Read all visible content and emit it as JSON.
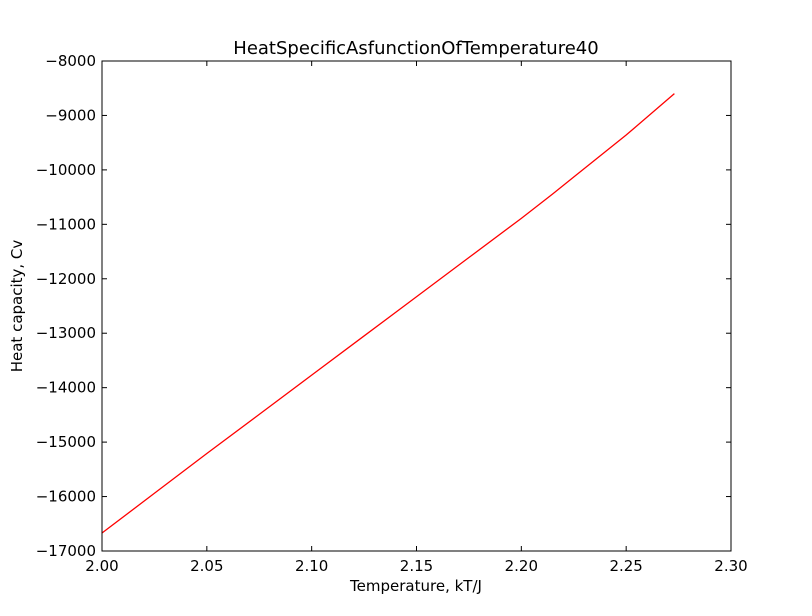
{
  "chart_data": {
    "type": "line",
    "title": "HeatSpecificAsfunctionOfTemperature40",
    "xlabel": "Temperature, kT/J",
    "ylabel": "Heat capacity, Cv",
    "xlim": [
      2.0,
      2.3
    ],
    "ylim": [
      -17000,
      -8000
    ],
    "xticks": [
      2.0,
      2.05,
      2.1,
      2.15,
      2.2,
      2.25,
      2.3
    ],
    "xtick_labels": [
      "2.00",
      "2.05",
      "2.10",
      "2.15",
      "2.20",
      "2.25",
      "2.30"
    ],
    "yticks": [
      -8000,
      -9000,
      -10000,
      -11000,
      -12000,
      -13000,
      -14000,
      -15000,
      -16000,
      -17000
    ],
    "ytick_labels": [
      "−8000",
      "−9000",
      "−10000",
      "−11000",
      "−12000",
      "−13000",
      "−14000",
      "−15000",
      "−16000",
      "−17000"
    ],
    "grid": false,
    "series": [
      {
        "color": "#ff0000",
        "x": [
          2.0,
          2.025,
          2.05,
          2.075,
          2.1,
          2.125,
          2.15,
          2.175,
          2.2,
          2.215,
          2.225,
          2.25,
          2.273
        ],
        "y": [
          -16670,
          -15940,
          -15210,
          -14490,
          -13770,
          -13050,
          -12330,
          -11610,
          -10890,
          -10440,
          -10130,
          -9360,
          -8600
        ]
      }
    ]
  }
}
